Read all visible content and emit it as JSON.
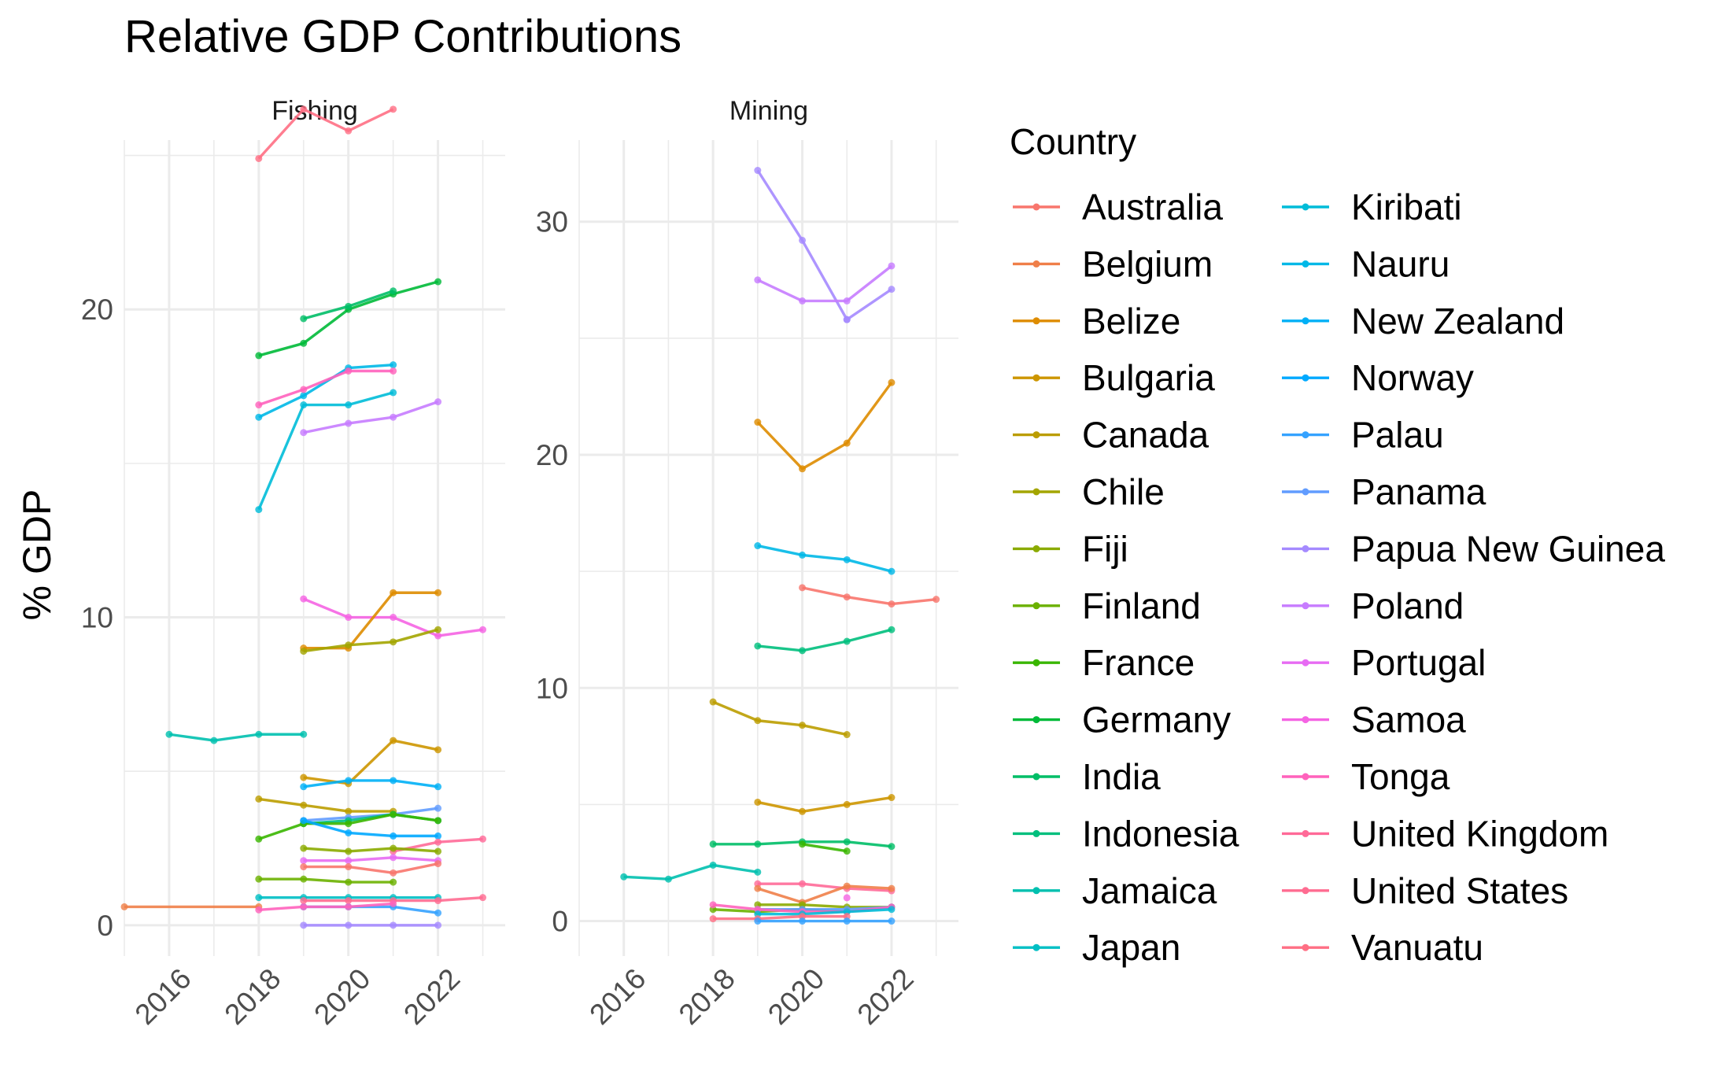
{
  "chart_data": {
    "type": "line",
    "title": "Relative GDP Contributions",
    "ylabel": "% GDP",
    "xlabel": "",
    "legend_title": "Country",
    "legend_position": "right",
    "grid": true,
    "x_ticks": [
      2016,
      2018,
      2020,
      2022
    ],
    "colors": {
      "Australia": "#F8766D",
      "Belgium": "#EF7F49",
      "Belize": "#DE8C00",
      "Bulgaria": "#CD9600",
      "Canada": "#BB9D00",
      "Chile": "#A3A500",
      "Fiji": "#8BAB00",
      "Finland": "#6BB100",
      "France": "#39B600",
      "Germany": "#00BA38",
      "India": "#00BE67",
      "Indonesia": "#00BF7D",
      "Jamaica": "#00C0AF",
      "Japan": "#00BFC4",
      "Kiribati": "#00BCD8",
      "Nauru": "#00B8E7",
      "New Zealand": "#00B0F6",
      "Norway": "#00A9FF",
      "Palau": "#35A2FF",
      "Panama": "#619CFF",
      "Papua New Guinea": "#A58AFF",
      "Poland": "#C77CFF",
      "Portugal": "#E76BF3",
      "Samoa": "#F564E3",
      "Tonga": "#FF62BC",
      "United Kingdom": "#FF6A98",
      "United States": "#FF6C91",
      "Vanuatu": "#FF6F84"
    },
    "legend_entries": [
      "Australia",
      "Belgium",
      "Belize",
      "Bulgaria",
      "Canada",
      "Chile",
      "Fiji",
      "Finland",
      "France",
      "Germany",
      "India",
      "Indonesia",
      "Jamaica",
      "Japan",
      "Kiribati",
      "Nauru",
      "New Zealand",
      "Norway",
      "Palau",
      "Panama",
      "Papua New Guinea",
      "Poland",
      "Portugal",
      "Samoa",
      "Tonga",
      "United Kingdom",
      "United States",
      "Vanuatu"
    ],
    "panels": [
      {
        "label": "Fishing",
        "xlim": [
          2015,
          2023.5
        ],
        "ylim": [
          -1,
          25.5
        ],
        "y_ticks": [
          0,
          10,
          20
        ],
        "series": [
          {
            "name": "Vanuatu",
            "x": [
              2018,
              2019,
              2020,
              2021
            ],
            "y": [
              24.9,
              26.5,
              25.8,
              26.5
            ]
          },
          {
            "name": "Germany",
            "x": [
              2018,
              2019,
              2020,
              2021,
              2022
            ],
            "y": [
              18.5,
              18.9,
              20.0,
              20.5,
              20.9
            ]
          },
          {
            "name": "India",
            "x": [
              2019,
              2020,
              2021
            ],
            "y": [
              19.7,
              20.1,
              20.6
            ]
          },
          {
            "name": "Nauru",
            "x": [
              2018,
              2019,
              2020,
              2021
            ],
            "y": [
              16.5,
              17.2,
              18.1,
              18.2
            ]
          },
          {
            "name": "Tonga",
            "x": [
              2018,
              2019,
              2020,
              2021
            ],
            "y": [
              16.9,
              17.4,
              18.0,
              18.0
            ]
          },
          {
            "name": "Kiribati",
            "x": [
              2018,
              2019,
              2020,
              2021
            ],
            "y": [
              13.5,
              16.9,
              16.9,
              17.3
            ]
          },
          {
            "name": "Poland",
            "x": [
              2019,
              2020,
              2021,
              2022
            ],
            "y": [
              16.0,
              16.3,
              16.5,
              17.0
            ]
          },
          {
            "name": "Samoa",
            "x": [
              2019,
              2020,
              2021,
              2022,
              2023
            ],
            "y": [
              10.6,
              10.0,
              10.0,
              9.4,
              9.6
            ]
          },
          {
            "name": "Belize",
            "x": [
              2019,
              2020,
              2021,
              2022
            ],
            "y": [
              9.0,
              9.0,
              10.8,
              10.8
            ]
          },
          {
            "name": "Chile",
            "x": [
              2019,
              2020,
              2021,
              2022
            ],
            "y": [
              8.9,
              9.1,
              9.2,
              9.6
            ]
          },
          {
            "name": "Jamaica",
            "x": [
              2016,
              2017,
              2018,
              2019
            ],
            "y": [
              6.2,
              6.0,
              6.2,
              6.2
            ]
          },
          {
            "name": "Bulgaria",
            "x": [
              2019,
              2020,
              2021,
              2022
            ],
            "y": [
              4.8,
              4.6,
              6.0,
              5.7
            ]
          },
          {
            "name": "New Zealand",
            "x": [
              2019,
              2020,
              2021,
              2022
            ],
            "y": [
              4.5,
              4.7,
              4.7,
              4.5
            ]
          },
          {
            "name": "Canada",
            "x": [
              2018,
              2019,
              2020,
              2021
            ],
            "y": [
              4.1,
              3.9,
              3.7,
              3.7
            ]
          },
          {
            "name": "Panama",
            "x": [
              2019,
              2020,
              2021,
              2022
            ],
            "y": [
              3.4,
              3.5,
              3.6,
              3.8
            ]
          },
          {
            "name": "Indonesia",
            "x": [
              2019,
              2020,
              2021,
              2022
            ],
            "y": [
              3.3,
              3.4,
              3.6,
              3.4
            ]
          },
          {
            "name": "France",
            "x": [
              2018,
              2019,
              2020,
              2021,
              2022
            ],
            "y": [
              2.8,
              3.3,
              3.3,
              3.6,
              3.4
            ]
          },
          {
            "name": "Norway",
            "x": [
              2019,
              2020,
              2021,
              2022
            ],
            "y": [
              3.4,
              3.0,
              2.9,
              2.9
            ]
          },
          {
            "name": "United Kingdom",
            "x": [
              2021,
              2022,
              2023
            ],
            "y": [
              2.4,
              2.7,
              2.8
            ]
          },
          {
            "name": "Fiji",
            "x": [
              2019,
              2020,
              2021,
              2022
            ],
            "y": [
              2.5,
              2.4,
              2.5,
              2.4
            ]
          },
          {
            "name": "Portugal",
            "x": [
              2019,
              2020,
              2021,
              2022
            ],
            "y": [
              2.1,
              2.1,
              2.2,
              2.1
            ]
          },
          {
            "name": "Finland",
            "x": [
              2018,
              2019,
              2020,
              2021
            ],
            "y": [
              1.5,
              1.5,
              1.4,
              1.4
            ]
          },
          {
            "name": "Australia",
            "x": [
              2019,
              2020,
              2021,
              2022
            ],
            "y": [
              1.9,
              1.9,
              1.7,
              2.0
            ]
          },
          {
            "name": "Japan",
            "x": [
              2018,
              2019,
              2020,
              2021,
              2022
            ],
            "y": [
              0.9,
              0.9,
              0.9,
              0.9,
              0.9
            ]
          },
          {
            "name": "Palau",
            "x": [
              2019,
              2020,
              2021,
              2022
            ],
            "y": [
              0.6,
              0.6,
              0.6,
              0.4
            ]
          },
          {
            "name": "United States",
            "x": [
              2019,
              2020,
              2021,
              2022,
              2023
            ],
            "y": [
              0.8,
              0.8,
              0.8,
              0.8,
              0.9
            ]
          },
          {
            "name": "Belgium",
            "x": [
              2015,
              2018
            ],
            "y": [
              0.6,
              0.6
            ]
          },
          {
            "name": "Tonga",
            "x": [
              2018,
              2019,
              2020,
              2021
            ],
            "y": [
              0.5,
              0.6,
              0.6,
              0.7
            ]
          },
          {
            "name": "Papua New Guinea",
            "x": [
              2019,
              2020,
              2021,
              2022
            ],
            "y": [
              0.0,
              0.0,
              0.0,
              0.0
            ]
          }
        ]
      },
      {
        "label": "Mining",
        "xlim": [
          2015,
          2023.5
        ],
        "ylim": [
          -1.5,
          33.5
        ],
        "y_ticks": [
          0,
          10,
          20,
          30
        ],
        "series": [
          {
            "name": "Papua New Guinea",
            "x": [
              2019,
              2020,
              2021
            ],
            "y": [
              32.2,
              29.2,
              25.8
            ]
          },
          {
            "name": "Poland",
            "x": [
              2019,
              2020,
              2021,
              2022
            ],
            "y": [
              27.5,
              26.6,
              26.6,
              28.1
            ]
          },
          {
            "name": "Papua New Guinea",
            "x": [
              2021,
              2022
            ],
            "y": [
              25.8,
              27.1
            ]
          },
          {
            "name": "Belize",
            "x": [
              2019,
              2020,
              2021,
              2022
            ],
            "y": [
              21.4,
              19.4,
              20.5,
              23.1
            ]
          },
          {
            "name": "Nauru",
            "x": [
              2019,
              2020,
              2021,
              2022
            ],
            "y": [
              16.1,
              15.7,
              15.5,
              15.0
            ]
          },
          {
            "name": "Australia",
            "x": [
              2020,
              2021,
              2022,
              2023
            ],
            "y": [
              14.3,
              13.9,
              13.6,
              13.8
            ]
          },
          {
            "name": "Indonesia",
            "x": [
              2019,
              2020,
              2021,
              2022
            ],
            "y": [
              11.8,
              11.6,
              12.0,
              12.5
            ]
          },
          {
            "name": "Canada",
            "x": [
              2018,
              2019,
              2020,
              2021
            ],
            "y": [
              9.4,
              8.6,
              8.4,
              8.0
            ]
          },
          {
            "name": "Bulgaria",
            "x": [
              2019,
              2020,
              2021,
              2022
            ],
            "y": [
              5.1,
              4.7,
              5.0,
              5.3
            ]
          },
          {
            "name": "India",
            "x": [
              2018,
              2019,
              2020,
              2021,
              2022
            ],
            "y": [
              3.3,
              3.3,
              3.4,
              3.4,
              3.2
            ]
          },
          {
            "name": "France",
            "x": [
              2020,
              2021
            ],
            "y": [
              3.3,
              3.0
            ]
          },
          {
            "name": "Jamaica",
            "x": [
              2016,
              2017,
              2018,
              2019
            ],
            "y": [
              1.9,
              1.8,
              2.4,
              2.1
            ]
          },
          {
            "name": "United Kingdom",
            "x": [
              2019,
              2020,
              2021,
              2022
            ],
            "y": [
              1.6,
              1.6,
              1.4,
              1.3
            ]
          },
          {
            "name": "Belgium",
            "x": [
              2019,
              2020,
              2021,
              2022
            ],
            "y": [
              1.4,
              0.8,
              1.5,
              1.4
            ]
          },
          {
            "name": "Samoa",
            "x": [
              2021
            ],
            "y": [
              1.0
            ]
          },
          {
            "name": "Fiji",
            "x": [
              2019,
              2020,
              2021,
              2022
            ],
            "y": [
              0.7,
              0.7,
              0.6,
              0.6
            ]
          },
          {
            "name": "Finland",
            "x": [
              2018,
              2019,
              2020,
              2021
            ],
            "y": [
              0.5,
              0.4,
              0.5,
              0.4
            ]
          },
          {
            "name": "Panama",
            "x": [
              2019,
              2020,
              2021,
              2022
            ],
            "y": [
              0.5,
              0.5,
              0.5,
              0.6
            ]
          },
          {
            "name": "Tonga",
            "x": [
              2018,
              2019,
              2020,
              2021,
              2022
            ],
            "y": [
              0.7,
              0.5,
              0.4,
              0.4,
              0.6
            ]
          },
          {
            "name": "Kiribati",
            "x": [
              2019,
              2020,
              2021,
              2022
            ],
            "y": [
              0.3,
              0.3,
              0.4,
              0.5
            ]
          },
          {
            "name": "Vanuatu",
            "x": [
              2018,
              2019,
              2020,
              2021
            ],
            "y": [
              0.1,
              0.1,
              0.2,
              0.2
            ]
          },
          {
            "name": "Palau",
            "x": [
              2019,
              2020,
              2021,
              2022
            ],
            "y": [
              0.0,
              0.0,
              0.0,
              0.0
            ]
          }
        ]
      }
    ]
  }
}
